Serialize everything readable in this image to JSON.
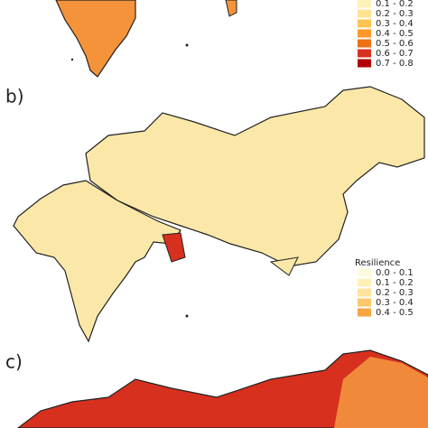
{
  "panel_a": {
    "legend": [
      {
        "label": "0.1 - 0.2",
        "color": "#fff1b8"
      },
      {
        "label": "0.2 - 0.3",
        "color": "#fee391"
      },
      {
        "label": "0.3 - 0.4",
        "color": "#fec44f"
      },
      {
        "label": "0.4 - 0.5",
        "color": "#fe9929"
      },
      {
        "label": "0.5 - 0.6",
        "color": "#ec7014"
      },
      {
        "label": "0.6 - 0.7",
        "color": "#d7301f"
      },
      {
        "label": "0.7 - 0.8",
        "color": "#b30000"
      }
    ]
  },
  "panel_b": {
    "label": "b)",
    "legend_title": "Resilience",
    "legend": [
      {
        "label": "0.0 - 0.1",
        "color": "#fffbe0"
      },
      {
        "label": "0.1 - 0.2",
        "color": "#fef0b8"
      },
      {
        "label": "0.2 - 0.3",
        "color": "#fde39b"
      },
      {
        "label": "0.3 - 0.4",
        "color": "#fbc86b"
      },
      {
        "label": "0.4 - 0.5",
        "color": "#f7a441"
      }
    ]
  },
  "panel_c": {
    "label": "c)"
  }
}
